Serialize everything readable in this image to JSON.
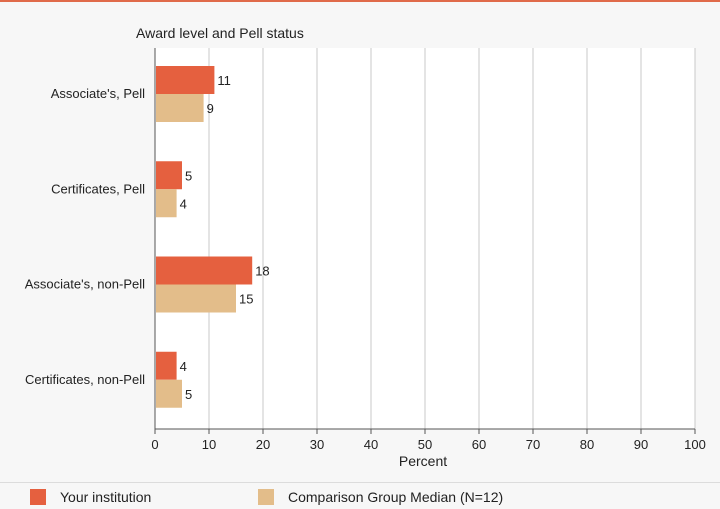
{
  "chart_data": {
    "type": "bar",
    "orientation": "horizontal",
    "title": "Award level and Pell status",
    "xlabel": "Percent",
    "ylabel": "",
    "xlim": [
      0,
      100
    ],
    "xticks": [
      0,
      10,
      20,
      30,
      40,
      50,
      60,
      70,
      80,
      90,
      100
    ],
    "grid": true,
    "categories": [
      "Associate's, Pell",
      "Certificates, Pell",
      "Associate's, non-Pell",
      "Certificates, non-Pell"
    ],
    "series": [
      {
        "name": "Your institution",
        "color": "#e5603f",
        "values": [
          11,
          5,
          18,
          4
        ]
      },
      {
        "name": "Comparison Group Median (N=12)",
        "color": "#e3bd8a",
        "values": [
          9,
          4,
          15,
          5
        ]
      }
    ],
    "legend": "bottom"
  }
}
